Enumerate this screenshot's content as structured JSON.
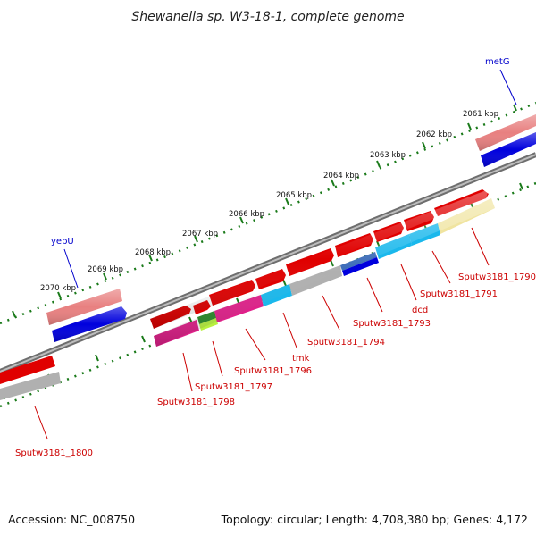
{
  "title": "Shewanella sp. W3-18-1, complete genome",
  "footer": {
    "accession": "Accession: NC_008750",
    "topology": "Topology: circular; Length: 4,708,380 bp; Genes: 4,172"
  },
  "scale_labels": [
    "2061 kbp",
    "2062 kbp",
    "2063 kbp",
    "2064 kbp",
    "2065 kbp",
    "2066 kbp",
    "2067 kbp",
    "2068 kbp",
    "2069 kbp",
    "2070 kbp"
  ],
  "gene_labels": {
    "metG": "metG",
    "yebU": "yebU",
    "s1790": "Sputw3181_1790",
    "s1791": "Sputw3181_1791",
    "dcd": "dcd",
    "s1793": "Sputw3181_1793",
    "s1794": "Sputw3181_1794",
    "tmk": "tmk",
    "s1796": "Sputw3181_1796",
    "s1797": "Sputw3181_1797",
    "s1798": "Sputw3181_1798",
    "s1800": "Sputw3181_1800"
  },
  "colors": {
    "backbone": "#888888",
    "tick_green": "#1a7a1a",
    "red": "#e00000",
    "light_red": "#e88080",
    "blue": "#0000dd",
    "pink": "#e0208a",
    "cyan": "#1ab8ec",
    "gray": "#b0b0b0",
    "yellow": "#f0e4a0",
    "lime": "#b8f040",
    "dark_green": "#2a8a2a",
    "steel_blue": "#3a6ab8"
  }
}
